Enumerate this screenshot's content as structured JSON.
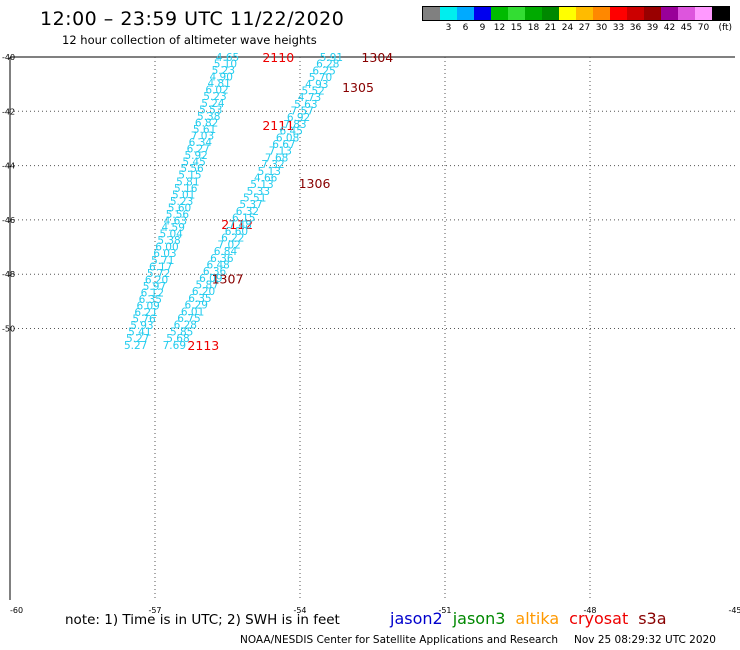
{
  "header": {
    "title": "12:00 – 23:59 UTC 11/22/2020",
    "subtitle": "12 hour collection of altimeter wave heights"
  },
  "legend": {
    "unit": "(ft)",
    "bins": [
      {
        "label": "",
        "color": "#808080"
      },
      {
        "label": "3",
        "color": "#00eeee"
      },
      {
        "label": "6",
        "color": "#00aaff"
      },
      {
        "label": "9",
        "color": "#0000ee"
      },
      {
        "label": "12",
        "color": "#00bb00"
      },
      {
        "label": "15",
        "color": "#33dd33"
      },
      {
        "label": "18",
        "color": "#00aa00"
      },
      {
        "label": "21",
        "color": "#008800"
      },
      {
        "label": "24",
        "color": "#ffff00"
      },
      {
        "label": "27",
        "color": "#ffbb00"
      },
      {
        "label": "30",
        "color": "#ff8800"
      },
      {
        "label": "33",
        "color": "#ff0000"
      },
      {
        "label": "36",
        "color": "#cc0000"
      },
      {
        "label": "39",
        "color": "#990000"
      },
      {
        "label": "42",
        "color": "#990099"
      },
      {
        "label": "45",
        "color": "#dd55dd"
      },
      {
        "label": "70",
        "color": "#ff99ff"
      },
      {
        "label": "",
        "color": "#000000"
      }
    ]
  },
  "map": {
    "x_range": [
      -60,
      -45
    ],
    "y_range": [
      -60,
      -40
    ],
    "x_ticks": [
      "-60",
      "-57",
      "-54",
      "-51",
      "-48",
      "-45"
    ],
    "y_ticks": [
      "-40",
      "-42",
      "-44",
      "-46",
      "-48",
      "-50"
    ],
    "swh_color": "#22ccee",
    "left_track": {
      "color": "#ee0000",
      "start": [
        -55.5,
        -40.0
      ],
      "end": [
        -57.4,
        -50.6
      ],
      "values": [
        "4.65",
        "5.10",
        "5.23",
        "4.90",
        "4.81",
        "6.02",
        "5.23",
        "5.24",
        "5.53",
        "5.38",
        "6.82",
        "5.61",
        "7.03",
        "6.34",
        "6.27",
        "5.92",
        "5.45",
        "5.56",
        "5.15",
        "5.81",
        "5.16",
        "5.01",
        "5.23",
        "5.60",
        "5.56",
        "4.63",
        "4.59",
        "5.04",
        "5.38",
        "6.00",
        "6.03",
        "5.71",
        "6.17",
        "5.72",
        "6.20",
        "5.97",
        "6.12",
        "6.35",
        "6.09",
        "6.21",
        "5.76",
        "5.93",
        "5.41",
        "5.27",
        "5.27"
      ],
      "times": [
        {
          "label": "2110",
          "lon": -54.45,
          "lat": -40.0
        },
        {
          "label": "2111",
          "lon": -54.45,
          "lat": -42.5
        },
        {
          "label": "2112",
          "lon": -55.3,
          "lat": -46.15
        },
        {
          "label": "2113",
          "lon": -56.0,
          "lat": -50.6
        }
      ]
    },
    "right_track": {
      "color": "#880000",
      "start": [
        -53.35,
        -40.0
      ],
      "end": [
        -56.6,
        -50.6
      ],
      "values": [
        "5.91",
        "6.28",
        "6.25",
        "5.70",
        "4.93",
        "5.52",
        "4.73",
        "5.63",
        "7.57",
        "6.92",
        "7.83",
        "6.45",
        "6.08",
        "6.67",
        "7.13",
        "7.68",
        "7.32",
        "5.13",
        "4.66",
        "5.13",
        "5.33",
        "5.51",
        "5.37",
        "6.32",
        "6.15",
        "7.48",
        "6.60",
        "6.22",
        "7.02",
        "6.84",
        "6.36",
        "6.48",
        "6.36",
        "6.09",
        "5.87",
        "6.20",
        "6.35",
        "6.29",
        "6.01",
        "6.75",
        "6.28",
        "5.85",
        "5.68",
        "7.69"
      ],
      "times": [
        {
          "label": "1304",
          "lon": -52.4,
          "lat": -40.0
        },
        {
          "label": "1305",
          "lon": -52.8,
          "lat": -41.1
        },
        {
          "label": "1306",
          "lon": -53.7,
          "lat": -44.65
        },
        {
          "label": "1307",
          "lon": -55.5,
          "lat": -48.15
        }
      ]
    }
  },
  "footer": {
    "note": "note:  1) Time is in UTC;  2) SWH is in feet",
    "satellites": [
      {
        "name": "jason2",
        "color": "#0000cc"
      },
      {
        "name": "jason3",
        "color": "#008800"
      },
      {
        "name": "altika",
        "color": "#ff9900"
      },
      {
        "name": "cryosat",
        "color": "#ee0000"
      },
      {
        "name": "s3a",
        "color": "#880000"
      }
    ],
    "credit": "NOAA/NESDIS Center for Satellite Applications and Research",
    "timestamp": "Nov 25 08:29:32 UTC 2020"
  }
}
